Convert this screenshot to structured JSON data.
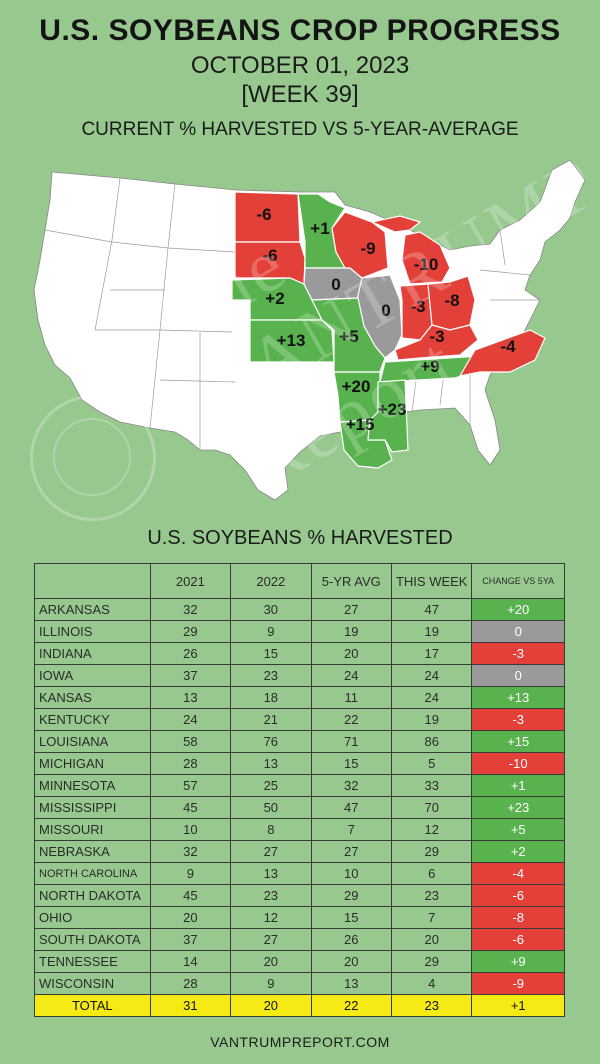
{
  "header": {
    "title": "U.S. SOYBEANS CROP PROGRESS",
    "date": "OCTOBER 01, 2023",
    "week": "[WEEK 39]",
    "subtitle": "CURRENT % HARVESTED VS 5-YEAR-AVERAGE"
  },
  "colors": {
    "background": "#97c98f",
    "positive": "#58b34e",
    "negative": "#e4403a",
    "neutral": "#9a9a9a",
    "total": "#f5ea14",
    "other_states": "#ffffff"
  },
  "map": {
    "labels": [
      {
        "state": "North Dakota",
        "text": "-6",
        "status": "negative"
      },
      {
        "state": "South Dakota",
        "text": "-6",
        "status": "negative"
      },
      {
        "state": "Minnesota",
        "text": "+1",
        "status": "positive"
      },
      {
        "state": "Wisconsin",
        "text": "-9",
        "status": "negative"
      },
      {
        "state": "Michigan",
        "text": "-10",
        "status": "negative"
      },
      {
        "state": "Iowa",
        "text": "0",
        "status": "neutral"
      },
      {
        "state": "Illinois",
        "text": "0",
        "status": "neutral"
      },
      {
        "state": "Nebraska",
        "text": "+2",
        "status": "positive"
      },
      {
        "state": "Indiana",
        "text": "-3",
        "status": "negative"
      },
      {
        "state": "Ohio",
        "text": "-8",
        "status": "negative"
      },
      {
        "state": "Kentucky",
        "text": "-3",
        "status": "negative"
      },
      {
        "state": "Kansas",
        "text": "+13",
        "status": "positive"
      },
      {
        "state": "Missouri",
        "text": "+5",
        "status": "positive"
      },
      {
        "state": "North Carolina",
        "text": "-4",
        "status": "negative"
      },
      {
        "state": "Tennessee",
        "text": "+9",
        "status": "positive"
      },
      {
        "state": "Arkansas",
        "text": "+20",
        "status": "positive"
      },
      {
        "state": "Mississippi",
        "text": "+23",
        "status": "positive"
      },
      {
        "state": "Louisiana",
        "text": "+15",
        "status": "positive"
      }
    ]
  },
  "watermark": "The VANTRUMP Report",
  "table": {
    "title": "U.S. SOYBEANS % HARVESTED",
    "columns": [
      "",
      "2021",
      "2022",
      "5-YR AVG",
      "THIS WEEK",
      "CHANGE VS 5YA"
    ],
    "rows": [
      {
        "state": "ARKANSAS",
        "y2021": "32",
        "y2022": "30",
        "avg": "27",
        "week": "47",
        "change": "+20",
        "status": "pos"
      },
      {
        "state": "ILLINOIS",
        "y2021": "29",
        "y2022": "9",
        "avg": "19",
        "week": "19",
        "change": "0",
        "status": "zero"
      },
      {
        "state": "INDIANA",
        "y2021": "26",
        "y2022": "15",
        "avg": "20",
        "week": "17",
        "change": "-3",
        "status": "neg"
      },
      {
        "state": "IOWA",
        "y2021": "37",
        "y2022": "23",
        "avg": "24",
        "week": "24",
        "change": "0",
        "status": "zero"
      },
      {
        "state": "KANSAS",
        "y2021": "13",
        "y2022": "18",
        "avg": "11",
        "week": "24",
        "change": "+13",
        "status": "pos"
      },
      {
        "state": "KENTUCKY",
        "y2021": "24",
        "y2022": "21",
        "avg": "22",
        "week": "19",
        "change": "-3",
        "status": "neg"
      },
      {
        "state": "LOUISIANA",
        "y2021": "58",
        "y2022": "76",
        "avg": "71",
        "week": "86",
        "change": "+15",
        "status": "pos"
      },
      {
        "state": "MICHIGAN",
        "y2021": "28",
        "y2022": "13",
        "avg": "15",
        "week": "5",
        "change": "-10",
        "status": "neg"
      },
      {
        "state": "MINNESOTA",
        "y2021": "57",
        "y2022": "25",
        "avg": "32",
        "week": "33",
        "change": "+1",
        "status": "pos"
      },
      {
        "state": "MISSISSIPPI",
        "y2021": "45",
        "y2022": "50",
        "avg": "47",
        "week": "70",
        "change": "+23",
        "status": "pos"
      },
      {
        "state": "MISSOURI",
        "y2021": "10",
        "y2022": "8",
        "avg": "7",
        "week": "12",
        "change": "+5",
        "status": "pos"
      },
      {
        "state": "NEBRASKA",
        "y2021": "32",
        "y2022": "27",
        "avg": "27",
        "week": "29",
        "change": "+2",
        "status": "pos"
      },
      {
        "state": "NORTH CAROLINA",
        "y2021": "9",
        "y2022": "13",
        "avg": "10",
        "week": "6",
        "change": "-4",
        "status": "neg"
      },
      {
        "state": "NORTH DAKOTA",
        "y2021": "45",
        "y2022": "23",
        "avg": "29",
        "week": "23",
        "change": "-6",
        "status": "neg"
      },
      {
        "state": "OHIO",
        "y2021": "20",
        "y2022": "12",
        "avg": "15",
        "week": "7",
        "change": "-8",
        "status": "neg"
      },
      {
        "state": "SOUTH DAKOTA",
        "y2021": "37",
        "y2022": "27",
        "avg": "26",
        "week": "20",
        "change": "-6",
        "status": "neg"
      },
      {
        "state": "TENNESSEE",
        "y2021": "14",
        "y2022": "20",
        "avg": "20",
        "week": "29",
        "change": "+9",
        "status": "pos"
      },
      {
        "state": "WISCONSIN",
        "y2021": "28",
        "y2022": "9",
        "avg": "13",
        "week": "4",
        "change": "-9",
        "status": "neg"
      }
    ],
    "total": {
      "state": "TOTAL",
      "y2021": "31",
      "y2022": "20",
      "avg": "22",
      "week": "23",
      "change": "+1"
    }
  },
  "footer": "VANTRUMPREPORT.COM"
}
